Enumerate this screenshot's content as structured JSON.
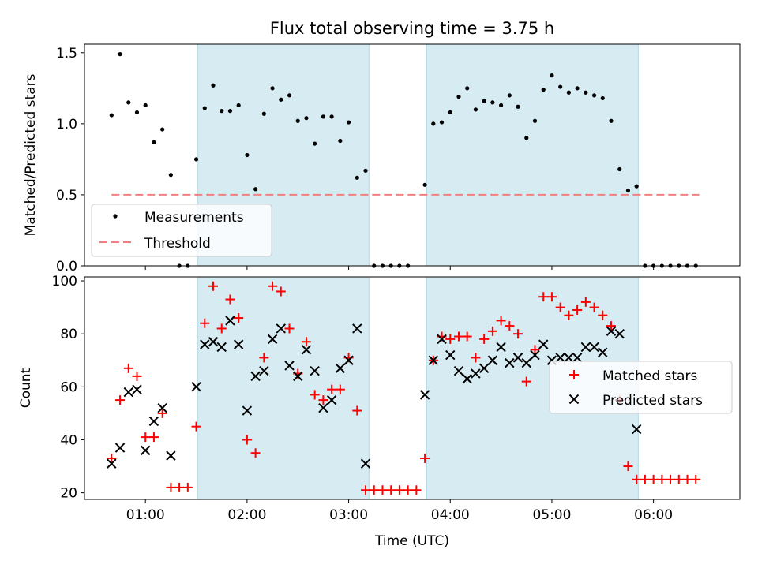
{
  "title": "Flux total observing time = 3.75 h",
  "colors": {
    "measurement": "#000000",
    "threshold": "#f08080",
    "matched": "#ff0000",
    "predicted": "#000000",
    "span_fill": "#add8e6"
  },
  "chart_data": [
    {
      "type": "scatter",
      "ylabel": "Matched/Predicted stars",
      "ylim": [
        0,
        1.56
      ],
      "yticks": [
        0.0,
        0.5,
        1.0,
        1.5
      ],
      "ytick_labels": [
        "0.0",
        "0.5",
        "1.0",
        "1.5"
      ],
      "legend_position": "lower-left",
      "threshold": 0.5,
      "threshold_x_range": [
        "00:40",
        "06:27"
      ],
      "shaded_spans": [
        [
          "01:31",
          "03:12"
        ],
        [
          "03:46",
          "05:51"
        ]
      ],
      "series": [
        {
          "name": "Measurements",
          "marker": "dot",
          "points": [
            [
              "00:40",
              1.06
            ],
            [
              "00:45",
              1.49
            ],
            [
              "00:50",
              1.15
            ],
            [
              "00:55",
              1.08
            ],
            [
              "01:00",
              1.13
            ],
            [
              "01:05",
              0.87
            ],
            [
              "01:10",
              0.96
            ],
            [
              "01:15",
              0.64
            ],
            [
              "01:20",
              0.0
            ],
            [
              "01:25",
              0.0
            ],
            [
              "01:30",
              0.75
            ],
            [
              "01:35",
              1.11
            ],
            [
              "01:40",
              1.27
            ],
            [
              "01:45",
              1.09
            ],
            [
              "01:50",
              1.09
            ],
            [
              "01:55",
              1.13
            ],
            [
              "02:00",
              0.78
            ],
            [
              "02:05",
              0.54
            ],
            [
              "02:10",
              1.07
            ],
            [
              "02:15",
              1.25
            ],
            [
              "02:20",
              1.17
            ],
            [
              "02:25",
              1.2
            ],
            [
              "02:30",
              1.02
            ],
            [
              "02:35",
              1.04
            ],
            [
              "02:40",
              0.86
            ],
            [
              "02:45",
              1.05
            ],
            [
              "02:50",
              1.05
            ],
            [
              "02:55",
              0.88
            ],
            [
              "03:00",
              1.01
            ],
            [
              "03:05",
              0.62
            ],
            [
              "03:10",
              0.67
            ],
            [
              "03:15",
              0.0
            ],
            [
              "03:20",
              0.0
            ],
            [
              "03:25",
              0.0
            ],
            [
              "03:30",
              0.0
            ],
            [
              "03:35",
              0.0
            ],
            [
              "03:45",
              0.57
            ],
            [
              "03:50",
              1.0
            ],
            [
              "03:55",
              1.01
            ],
            [
              "04:00",
              1.08
            ],
            [
              "04:05",
              1.19
            ],
            [
              "04:10",
              1.25
            ],
            [
              "04:15",
              1.1
            ],
            [
              "04:20",
              1.16
            ],
            [
              "04:25",
              1.15
            ],
            [
              "04:30",
              1.13
            ],
            [
              "04:35",
              1.2
            ],
            [
              "04:40",
              1.12
            ],
            [
              "04:45",
              0.9
            ],
            [
              "04:50",
              1.02
            ],
            [
              "04:55",
              1.24
            ],
            [
              "05:00",
              1.34
            ],
            [
              "05:05",
              1.26
            ],
            [
              "05:10",
              1.22
            ],
            [
              "05:15",
              1.25
            ],
            [
              "05:20",
              1.22
            ],
            [
              "05:25",
              1.2
            ],
            [
              "05:30",
              1.18
            ],
            [
              "05:35",
              1.02
            ],
            [
              "05:40",
              0.68
            ],
            [
              "05:45",
              0.53
            ],
            [
              "05:50",
              0.56
            ],
            [
              "05:55",
              0.0
            ],
            [
              "06:00",
              0.0
            ],
            [
              "06:05",
              0.0
            ],
            [
              "06:10",
              0.0
            ],
            [
              "06:15",
              0.0
            ],
            [
              "06:20",
              0.0
            ],
            [
              "06:25",
              0.0
            ]
          ]
        },
        {
          "name": "Threshold",
          "marker": "dashed-line"
        }
      ]
    },
    {
      "type": "scatter",
      "xlabel": "Time (UTC)",
      "ylabel": "Count",
      "ylim": [
        17.5,
        101.5
      ],
      "yticks": [
        20,
        40,
        60,
        80,
        100
      ],
      "ytick_labels": [
        "20",
        "40",
        "60",
        "80",
        "100"
      ],
      "xlim": [
        "00:24",
        "06:51"
      ],
      "xticks": [
        "01:00",
        "02:00",
        "03:00",
        "04:00",
        "05:00",
        "06:00"
      ],
      "xtick_labels": [
        "01:00",
        "02:00",
        "03:00",
        "04:00",
        "05:00",
        "06:00"
      ],
      "legend_position": "center-right",
      "shaded_spans": [
        [
          "01:31",
          "03:12"
        ],
        [
          "03:46",
          "05:51"
        ]
      ],
      "series": [
        {
          "name": "Matched stars",
          "marker": "plus",
          "points": [
            [
              "00:40",
              33
            ],
            [
              "00:45",
              55
            ],
            [
              "00:50",
              67
            ],
            [
              "00:55",
              64
            ],
            [
              "01:00",
              41
            ],
            [
              "01:05",
              41
            ],
            [
              "01:10",
              50
            ],
            [
              "01:15",
              22
            ],
            [
              "01:20",
              22
            ],
            [
              "01:25",
              22
            ],
            [
              "01:30",
              45
            ],
            [
              "01:35",
              84
            ],
            [
              "01:40",
              98
            ],
            [
              "01:45",
              82
            ],
            [
              "01:50",
              93
            ],
            [
              "01:55",
              86
            ],
            [
              "02:00",
              40
            ],
            [
              "02:05",
              35
            ],
            [
              "02:10",
              71
            ],
            [
              "02:15",
              98
            ],
            [
              "02:20",
              96
            ],
            [
              "02:25",
              82
            ],
            [
              "02:30",
              65
            ],
            [
              "02:35",
              77
            ],
            [
              "02:40",
              57
            ],
            [
              "02:45",
              55
            ],
            [
              "02:50",
              59
            ],
            [
              "02:55",
              59
            ],
            [
              "03:00",
              71
            ],
            [
              "03:05",
              51
            ],
            [
              "03:10",
              21
            ],
            [
              "03:15",
              21
            ],
            [
              "03:20",
              21
            ],
            [
              "03:25",
              21
            ],
            [
              "03:30",
              21
            ],
            [
              "03:35",
              21
            ],
            [
              "03:40",
              21
            ],
            [
              "03:45",
              33
            ],
            [
              "03:50",
              70
            ],
            [
              "03:55",
              79
            ],
            [
              "04:00",
              78
            ],
            [
              "04:05",
              79
            ],
            [
              "04:10",
              79
            ],
            [
              "04:15",
              71
            ],
            [
              "04:20",
              78
            ],
            [
              "04:25",
              81
            ],
            [
              "04:30",
              85
            ],
            [
              "04:35",
              83
            ],
            [
              "04:40",
              80
            ],
            [
              "04:45",
              62
            ],
            [
              "04:50",
              74
            ],
            [
              "04:55",
              94
            ],
            [
              "05:00",
              94
            ],
            [
              "05:05",
              90
            ],
            [
              "05:10",
              87
            ],
            [
              "05:15",
              89
            ],
            [
              "05:20",
              92
            ],
            [
              "05:25",
              90
            ],
            [
              "05:30",
              87
            ],
            [
              "05:35",
              83
            ],
            [
              "05:40",
              55
            ],
            [
              "05:45",
              30
            ],
            [
              "05:50",
              25
            ],
            [
              "05:55",
              25
            ],
            [
              "06:00",
              25
            ],
            [
              "06:05",
              25
            ],
            [
              "06:10",
              25
            ],
            [
              "06:15",
              25
            ],
            [
              "06:20",
              25
            ],
            [
              "06:25",
              25
            ]
          ]
        },
        {
          "name": "Predicted stars",
          "marker": "x",
          "points": [
            [
              "00:40",
              31
            ],
            [
              "00:45",
              37
            ],
            [
              "00:50",
              58
            ],
            [
              "00:55",
              59
            ],
            [
              "01:00",
              36
            ],
            [
              "01:05",
              47
            ],
            [
              "01:10",
              52
            ],
            [
              "01:15",
              34
            ],
            [
              "01:30",
              60
            ],
            [
              "01:35",
              76
            ],
            [
              "01:40",
              77
            ],
            [
              "01:45",
              75
            ],
            [
              "01:50",
              85
            ],
            [
              "01:55",
              76
            ],
            [
              "02:00",
              51
            ],
            [
              "02:05",
              64
            ],
            [
              "02:10",
              66
            ],
            [
              "02:15",
              78
            ],
            [
              "02:20",
              82
            ],
            [
              "02:25",
              68
            ],
            [
              "02:30",
              64
            ],
            [
              "02:35",
              74
            ],
            [
              "02:40",
              66
            ],
            [
              "02:45",
              52
            ],
            [
              "02:50",
              55
            ],
            [
              "02:55",
              67
            ],
            [
              "03:00",
              70
            ],
            [
              "03:05",
              82
            ],
            [
              "03:10",
              31
            ],
            [
              "03:45",
              57
            ],
            [
              "03:50",
              70
            ],
            [
              "03:55",
              78
            ],
            [
              "04:00",
              72
            ],
            [
              "04:05",
              66
            ],
            [
              "04:10",
              63
            ],
            [
              "04:15",
              65
            ],
            [
              "04:20",
              67
            ],
            [
              "04:25",
              70
            ],
            [
              "04:30",
              75
            ],
            [
              "04:35",
              69
            ],
            [
              "04:40",
              71
            ],
            [
              "04:45",
              69
            ],
            [
              "04:50",
              72
            ],
            [
              "04:55",
              76
            ],
            [
              "05:00",
              70
            ],
            [
              "05:05",
              71
            ],
            [
              "05:10",
              71
            ],
            [
              "05:15",
              71
            ],
            [
              "05:20",
              75
            ],
            [
              "05:25",
              75
            ],
            [
              "05:30",
              73
            ],
            [
              "05:35",
              81
            ],
            [
              "05:40",
              80
            ],
            [
              "05:50",
              44
            ]
          ]
        }
      ]
    }
  ]
}
